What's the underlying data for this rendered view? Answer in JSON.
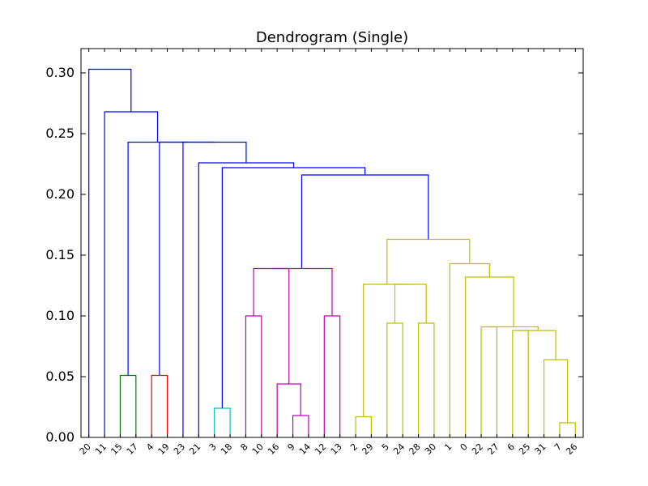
{
  "chart_data": {
    "type": "dendrogram",
    "title": "Dendrogram (Single)",
    "xlabel": "",
    "ylabel": "",
    "ylim": [
      0,
      0.32
    ],
    "yticks": [
      0.0,
      0.05,
      0.1,
      0.15,
      0.2,
      0.25,
      0.3
    ],
    "ytick_labels": [
      "0.00",
      "0.05",
      "0.10",
      "0.15",
      "0.20",
      "0.25",
      "0.30"
    ],
    "leaves": [
      "20",
      "11",
      "15",
      "17",
      "4",
      "19",
      "23",
      "21",
      "3",
      "18",
      "8",
      "10",
      "16",
      "9",
      "14",
      "12",
      "13",
      "2",
      "29",
      "5",
      "24",
      "28",
      "30",
      "1",
      "0",
      "22",
      "27",
      "6",
      "25",
      "31",
      "7",
      "26"
    ],
    "grid": false,
    "colors": {
      "blue": "#0000ff",
      "green": "#008000",
      "red": "#ff0000",
      "cyan": "#00bfbf",
      "magenta": "#bf00bf",
      "yellow": "#bfbf00"
    },
    "merges": [
      {
        "left": 2,
        "right": 3,
        "height": 0.051,
        "color": "green"
      },
      {
        "left": 4,
        "right": 5,
        "height": 0.051,
        "color": "red"
      },
      {
        "left": 8,
        "right": 9,
        "height": 0.024,
        "color": "cyan"
      },
      {
        "left": 13,
        "right": 14,
        "height": 0.018,
        "color": "magenta"
      },
      {
        "left": 12,
        "right": "m3",
        "height": 0.044,
        "color": "magenta"
      },
      {
        "left": 10,
        "right": 11,
        "height": 0.1,
        "color": "magenta"
      },
      {
        "left": 15,
        "right": 16,
        "height": 0.1,
        "color": "magenta"
      },
      {
        "left": "m5",
        "right": "m4",
        "height": 0.139,
        "color": "magenta"
      },
      {
        "left": "m7",
        "right": "m6",
        "height": 0.139,
        "color": "magenta"
      },
      {
        "left": 17,
        "right": 18,
        "height": 0.017,
        "color": "yellow"
      },
      {
        "left": 19,
        "right": 20,
        "height": 0.094,
        "color": "yellow"
      },
      {
        "left": 21,
        "right": 22,
        "height": 0.094,
        "color": "yellow"
      },
      {
        "left": "m10",
        "right": "m11",
        "height": 0.126,
        "color": "yellow"
      },
      {
        "left": "m9",
        "right": "m12",
        "height": 0.126,
        "color": "yellow"
      },
      {
        "left": 30,
        "right": 31,
        "height": 0.012,
        "color": "yellow"
      },
      {
        "left": 29,
        "right": "m14",
        "height": 0.064,
        "color": "yellow"
      },
      {
        "left": 27,
        "right": 28,
        "height": 0.088,
        "color": "yellow"
      },
      {
        "left": "m16",
        "right": "m15",
        "height": 0.088,
        "color": "yellow"
      },
      {
        "left": 25,
        "right": 26,
        "height": 0.091,
        "color": "yellow"
      },
      {
        "left": "m18",
        "right": "m17",
        "height": 0.091,
        "color": "yellow"
      },
      {
        "left": 24,
        "right": "m19",
        "height": 0.132,
        "color": "yellow"
      },
      {
        "left": 23,
        "right": "m20",
        "height": 0.143,
        "color": "yellow"
      },
      {
        "left": "m13",
        "right": "m21",
        "height": 0.163,
        "color": "yellow"
      },
      {
        "left": "m8",
        "right": "m22",
        "height": 0.216,
        "color": "blue"
      },
      {
        "left": "m2",
        "right": "m23",
        "height": 0.222,
        "color": "blue"
      },
      {
        "left": 7,
        "right": "m24",
        "height": 0.226,
        "color": "blue"
      },
      {
        "left": 6,
        "right": "m25",
        "height": 0.243,
        "color": "blue"
      },
      {
        "left": "m1",
        "right": "m26",
        "height": 0.243,
        "color": "blue"
      },
      {
        "left": "m0",
        "right": "m27",
        "height": 0.243,
        "color": "blue"
      },
      {
        "left": 1,
        "right": "m28",
        "height": 0.268,
        "color": "blue"
      },
      {
        "left": 0,
        "right": "m29",
        "height": 0.303,
        "color": "blue"
      }
    ]
  }
}
